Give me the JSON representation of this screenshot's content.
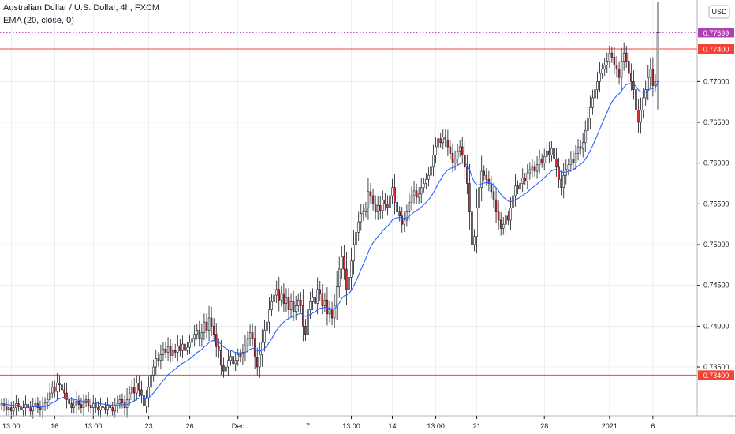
{
  "header": {
    "title": "Australian Dollar / U.S. Dollar, 4h, FXCM",
    "indicator": "EMA (20, close, 0)"
  },
  "currency_button": "USD",
  "colors": {
    "up": "#ffffff",
    "down": "#d32f2f",
    "wick": "#131722",
    "ema": "#2962ff",
    "hline": "#f44336",
    "price": "#b23fb2",
    "grid": "#e0e3eb"
  },
  "chart_data": {
    "type": "candlestick",
    "ylim": [
      0.729,
      0.78
    ],
    "y_ticks": [
      "0.77000",
      "0.76500",
      "0.76000",
      "0.75500",
      "0.75000",
      "0.74500",
      "0.74000",
      "0.73500"
    ],
    "y_tick_values": [
      0.77,
      0.765,
      0.76,
      0.755,
      0.75,
      0.745,
      0.74,
      0.735
    ],
    "x_labels": [
      "13:00",
      "16",
      "13:00",
      "23",
      "26",
      "Dec",
      "7",
      "13:00",
      "14",
      "13:00",
      "21",
      "28",
      "2021",
      "6"
    ],
    "x_label_bars": [
      4,
      22,
      38,
      61,
      78,
      98,
      127,
      145,
      162,
      180,
      197,
      225,
      252,
      270
    ],
    "horizontal_levels": [
      {
        "value": 0.774,
        "label": "0.77400"
      },
      {
        "value": 0.734,
        "label": "0.73400"
      }
    ],
    "last_price": {
      "value": 0.77599,
      "label": "0.77599"
    },
    "ema_period": 20,
    "closes": [
      0.7305,
      0.7302,
      0.7298,
      0.73,
      0.7296,
      0.73,
      0.7305,
      0.7301,
      0.7297,
      0.73,
      0.7304,
      0.73,
      0.7296,
      0.7301,
      0.7305,
      0.73,
      0.7297,
      0.7302,
      0.7306,
      0.731,
      0.7318,
      0.7325,
      0.732,
      0.733,
      0.7328,
      0.7322,
      0.7318,
      0.731,
      0.7305,
      0.73,
      0.7302,
      0.7308,
      0.7304,
      0.73,
      0.7306,
      0.731,
      0.7303,
      0.73,
      0.7305,
      0.73,
      0.7297,
      0.7302,
      0.73,
      0.7298,
      0.7303,
      0.73,
      0.7296,
      0.7302,
      0.7305,
      0.731,
      0.7306,
      0.73,
      0.731,
      0.7318,
      0.7325,
      0.7318,
      0.733,
      0.7322,
      0.7315,
      0.7302,
      0.7312,
      0.7325,
      0.734,
      0.735,
      0.736,
      0.7358,
      0.7365,
      0.7372,
      0.7368,
      0.7375,
      0.7364,
      0.737,
      0.7368,
      0.7376,
      0.737,
      0.7378,
      0.737,
      0.7374,
      0.738,
      0.7385,
      0.739,
      0.7395,
      0.7385,
      0.7392,
      0.7405,
      0.7395,
      0.741,
      0.74,
      0.739,
      0.7375,
      0.737,
      0.7352,
      0.7345,
      0.735,
      0.7358,
      0.7363,
      0.7354,
      0.7358,
      0.7365,
      0.7362,
      0.7368,
      0.7376,
      0.7385,
      0.7392,
      0.7385,
      0.7362,
      0.735,
      0.7365,
      0.738,
      0.7395,
      0.7405,
      0.742,
      0.743,
      0.7438,
      0.7445,
      0.7432,
      0.744,
      0.7428,
      0.7435,
      0.742,
      0.743,
      0.7418,
      0.7425,
      0.7432,
      0.7425,
      0.74,
      0.739,
      0.742,
      0.743,
      0.7435,
      0.7428,
      0.7445,
      0.744,
      0.7425,
      0.7432,
      0.7415,
      0.742,
      0.741,
      0.7425,
      0.7448,
      0.747,
      0.7485,
      0.747,
      0.7445,
      0.746,
      0.748,
      0.75,
      0.7515,
      0.7528,
      0.7538,
      0.754,
      0.7545,
      0.7565,
      0.756,
      0.755,
      0.754,
      0.7548,
      0.7542,
      0.7555,
      0.755,
      0.7545,
      0.756,
      0.757,
      0.7552,
      0.754,
      0.7535,
      0.7525,
      0.753,
      0.754,
      0.7552,
      0.756,
      0.7566,
      0.7558,
      0.7562,
      0.757,
      0.7575,
      0.758,
      0.7585,
      0.7595,
      0.761,
      0.762,
      0.763,
      0.7625,
      0.7632,
      0.7628,
      0.762,
      0.7612,
      0.76,
      0.7605,
      0.7615,
      0.762,
      0.761,
      0.7595,
      0.7575,
      0.754,
      0.75,
      0.751,
      0.7545,
      0.757,
      0.759,
      0.7585,
      0.758,
      0.7575,
      0.7565,
      0.7555,
      0.754,
      0.753,
      0.752,
      0.7525,
      0.7535,
      0.753,
      0.7545,
      0.756,
      0.7572,
      0.7568,
      0.7575,
      0.7582,
      0.7578,
      0.7588,
      0.7592,
      0.7595,
      0.759,
      0.7598,
      0.7605,
      0.76,
      0.7608,
      0.7615,
      0.761,
      0.7618,
      0.7605,
      0.7595,
      0.758,
      0.757,
      0.7585,
      0.7592,
      0.7598,
      0.7605,
      0.76,
      0.7612,
      0.762,
      0.7618,
      0.7625,
      0.764,
      0.7655,
      0.7668,
      0.768,
      0.769,
      0.77,
      0.771,
      0.7715,
      0.772,
      0.7725,
      0.7735,
      0.773,
      0.772,
      0.7715,
      0.7705,
      0.7725,
      0.7735,
      0.7725,
      0.771,
      0.77,
      0.769,
      0.7665,
      0.765,
      0.7665,
      0.768,
      0.769,
      0.7705,
      0.7715,
      0.7695,
      0.77,
      0.776
    ]
  }
}
